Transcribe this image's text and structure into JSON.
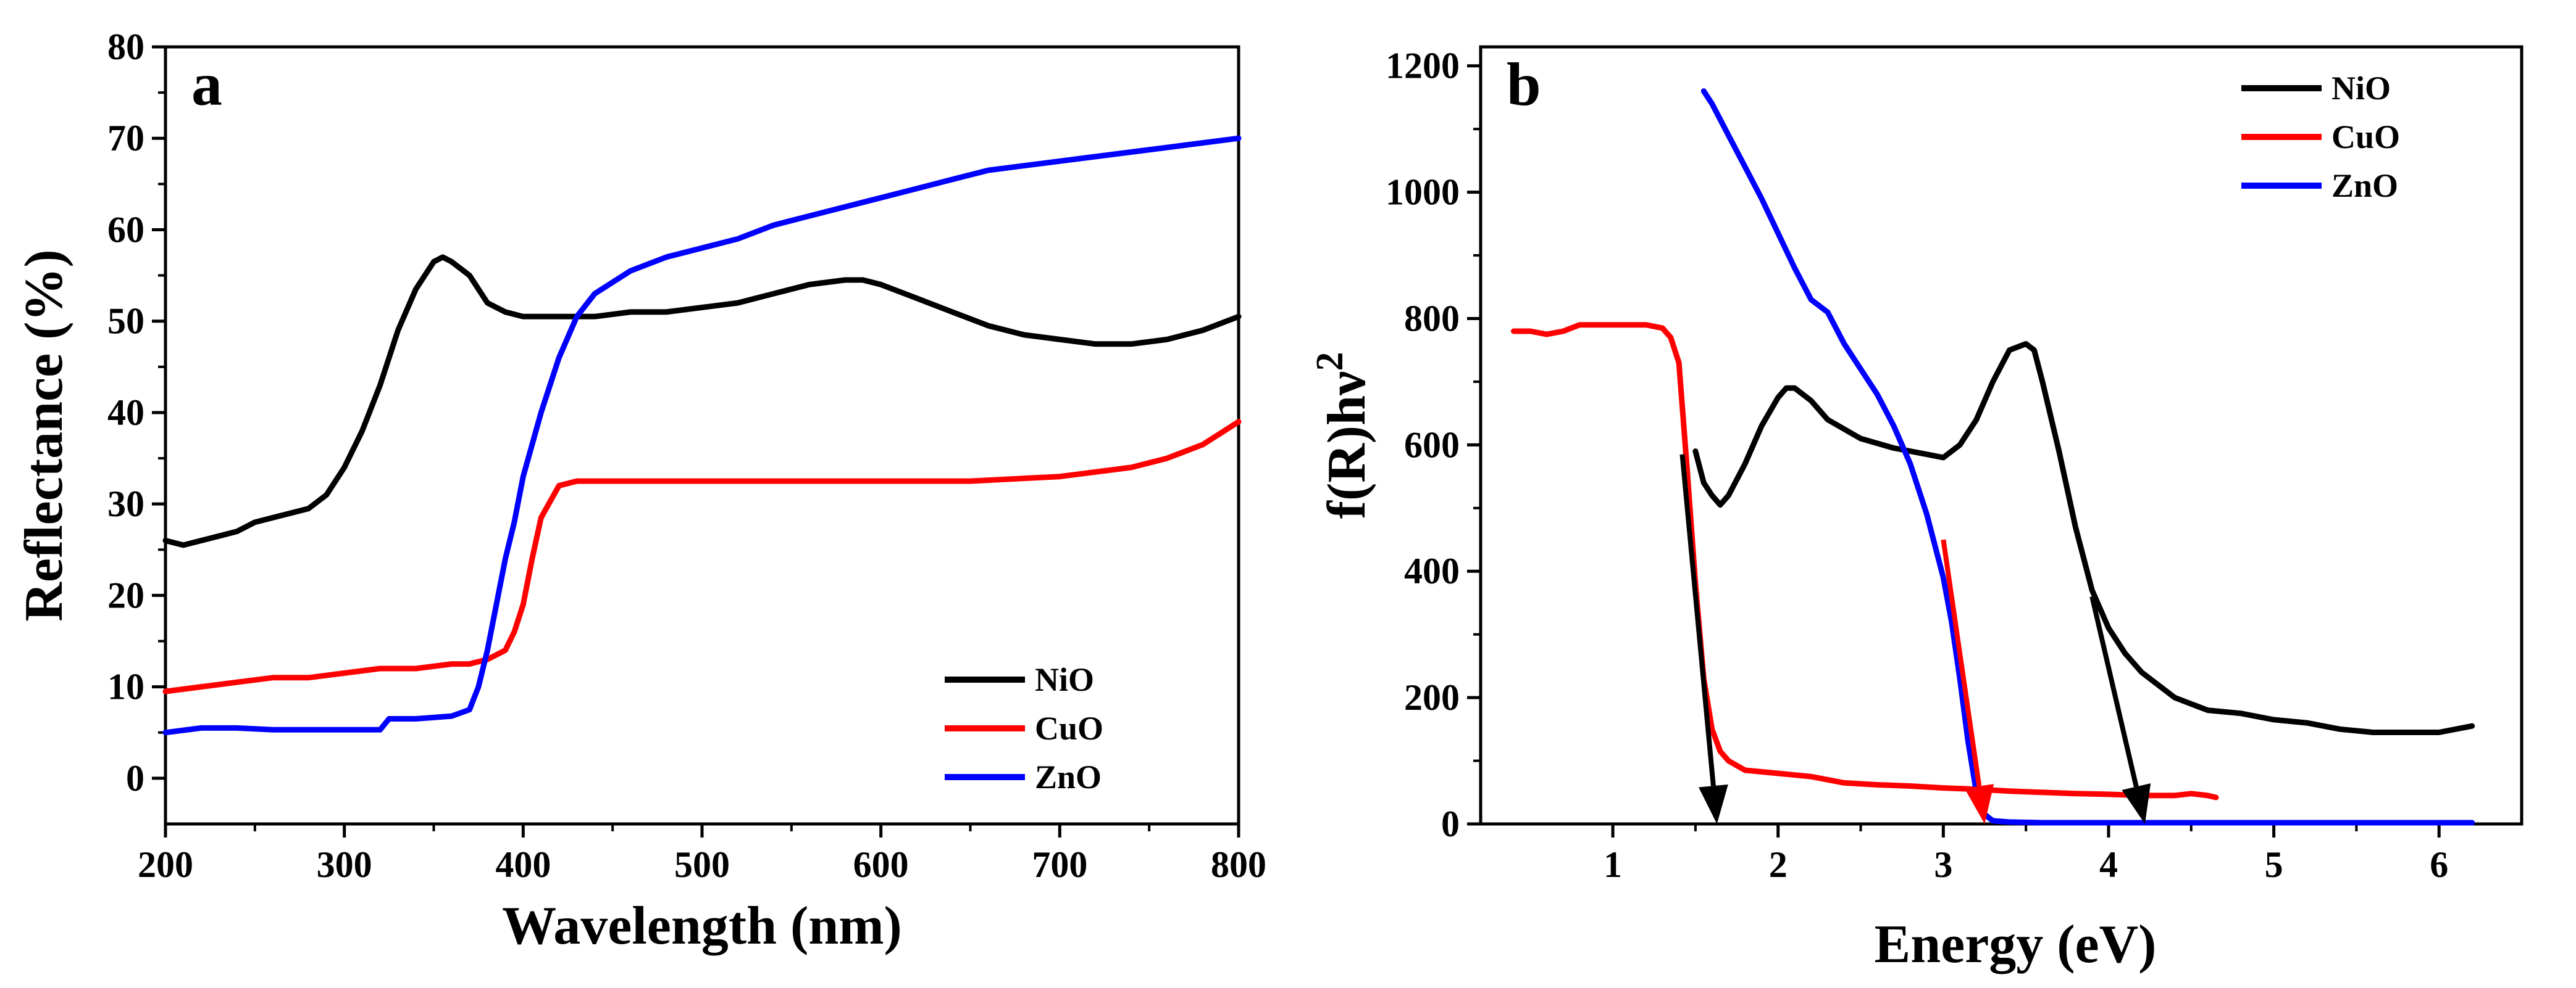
{
  "chart_data": [
    {
      "panel_label": "a",
      "type": "line",
      "title": "",
      "xlabel": "Wavelength (nm)",
      "ylabel": "Reflectance (%)",
      "xlim": [
        200,
        800
      ],
      "ylim": [
        -5,
        80
      ],
      "xticks": [
        200,
        300,
        400,
        500,
        600,
        700,
        800
      ],
      "yticks": [
        0,
        10,
        20,
        30,
        40,
        50,
        60,
        70,
        80
      ],
      "grid": false,
      "legend_position": "bottom-right",
      "series": [
        {
          "name": "NiO",
          "color": "#000000",
          "x": [
            200,
            210,
            220,
            230,
            240,
            250,
            260,
            270,
            280,
            290,
            300,
            310,
            320,
            330,
            340,
            350,
            355,
            360,
            370,
            380,
            390,
            400,
            420,
            440,
            460,
            480,
            500,
            520,
            540,
            560,
            580,
            590,
            600,
            620,
            640,
            660,
            680,
            700,
            720,
            740,
            760,
            780,
            800
          ],
          "y": [
            26,
            25.5,
            26,
            26.5,
            27,
            28,
            28.5,
            29,
            29.5,
            31,
            34,
            38,
            43,
            49,
            53.5,
            56.5,
            57,
            56.5,
            55,
            52,
            51,
            50.5,
            50.5,
            50.5,
            51,
            51,
            51.5,
            52,
            53,
            54,
            54.5,
            54.5,
            54,
            52.5,
            51,
            49.5,
            48.5,
            48,
            47.5,
            47.5,
            48,
            49,
            50.5
          ]
        },
        {
          "name": "CuO",
          "color": "#ff0000",
          "x": [
            200,
            220,
            240,
            260,
            280,
            300,
            320,
            340,
            360,
            370,
            380,
            390,
            395,
            400,
            405,
            410,
            420,
            430,
            440,
            460,
            500,
            550,
            600,
            650,
            700,
            740,
            760,
            780,
            800
          ],
          "y": [
            9.5,
            10,
            10.5,
            11,
            11,
            11.5,
            12,
            12,
            12.5,
            12.5,
            13,
            14,
            16,
            19,
            24,
            28.5,
            32,
            32.5,
            32.5,
            32.5,
            32.5,
            32.5,
            32.5,
            32.5,
            33,
            34,
            35,
            36.5,
            39
          ]
        },
        {
          "name": "ZnO",
          "color": "#0000ff",
          "x": [
            200,
            220,
            240,
            260,
            280,
            300,
            320,
            325,
            340,
            360,
            370,
            375,
            380,
            385,
            390,
            395,
            400,
            410,
            420,
            430,
            440,
            460,
            480,
            500,
            520,
            540,
            560,
            580,
            600,
            620,
            640,
            660,
            680,
            700,
            720,
            740,
            760,
            780,
            800
          ],
          "y": [
            5,
            5.5,
            5.5,
            5.3,
            5.3,
            5.3,
            5.3,
            6.5,
            6.5,
            6.8,
            7.5,
            10,
            14,
            19,
            24,
            28,
            33,
            40,
            46,
            50.5,
            53,
            55.5,
            57,
            58,
            59,
            60.5,
            61.5,
            62.5,
            63.5,
            64.5,
            65.5,
            66.5,
            67,
            67.5,
            68,
            68.5,
            69,
            69.5,
            70
          ]
        }
      ]
    },
    {
      "panel_label": "b",
      "type": "line",
      "title": "",
      "xlabel": "Energy (eV)",
      "ylabel_main": "f(R)hν",
      "ylabel_superscript": "2",
      "xlim": [
        0.2,
        6.5
      ],
      "ylim": [
        0,
        1230
      ],
      "xticks": [
        1,
        2,
        3,
        4,
        5,
        6
      ],
      "yticks": [
        0,
        200,
        400,
        600,
        800,
        1000,
        1200
      ],
      "grid": false,
      "legend_position": "top-right",
      "series": [
        {
          "name": "NiO",
          "color": "#000000",
          "x": [
            1.5,
            1.55,
            1.6,
            1.65,
            1.7,
            1.8,
            1.9,
            2.0,
            2.05,
            2.1,
            2.2,
            2.3,
            2.5,
            2.7,
            2.9,
            3.0,
            3.1,
            3.2,
            3.3,
            3.4,
            3.5,
            3.55,
            3.6,
            3.7,
            3.8,
            3.9,
            4.0,
            4.1,
            4.2,
            4.4,
            4.6,
            4.8,
            5.0,
            5.2,
            5.4,
            5.6,
            5.8,
            6.0,
            6.2
          ],
          "y": [
            590,
            540,
            520,
            505,
            520,
            570,
            630,
            675,
            690,
            690,
            670,
            640,
            610,
            595,
            585,
            580,
            600,
            640,
            700,
            750,
            760,
            750,
            700,
            590,
            470,
            370,
            310,
            270,
            240,
            200,
            180,
            175,
            165,
            160,
            150,
            145,
            145,
            145,
            155
          ]
        },
        {
          "name": "CuO",
          "color": "#ff0000",
          "x": [
            0.4,
            0.5,
            0.6,
            0.7,
            0.8,
            0.9,
            1.0,
            1.1,
            1.2,
            1.3,
            1.35,
            1.4,
            1.45,
            1.5,
            1.55,
            1.6,
            1.65,
            1.7,
            1.8,
            2.0,
            2.2,
            2.4,
            2.6,
            2.8,
            3.0,
            3.2,
            3.4,
            3.6,
            3.8,
            4.0,
            4.2,
            4.4,
            4.5,
            4.6,
            4.65
          ],
          "y": [
            780,
            780,
            775,
            780,
            790,
            790,
            790,
            790,
            790,
            785,
            770,
            730,
            560,
            380,
            230,
            150,
            115,
            100,
            85,
            80,
            75,
            65,
            62,
            60,
            57,
            55,
            52,
            50,
            48,
            47,
            45,
            45,
            48,
            45,
            42
          ]
        },
        {
          "name": "ZnO",
          "color": "#0000ff",
          "x": [
            1.55,
            1.6,
            1.7,
            1.8,
            1.9,
            2.0,
            2.1,
            2.2,
            2.3,
            2.4,
            2.5,
            2.6,
            2.7,
            2.8,
            2.9,
            3.0,
            3.05,
            3.1,
            3.15,
            3.2,
            3.25,
            3.3,
            3.4,
            3.6,
            4.0,
            5.0,
            6.0,
            6.2
          ],
          "y": [
            1160,
            1140,
            1090,
            1040,
            990,
            935,
            880,
            830,
            810,
            760,
            720,
            680,
            630,
            570,
            490,
            390,
            320,
            230,
            130,
            50,
            15,
            5,
            3,
            2,
            2,
            2,
            2,
            2
          ]
        }
      ],
      "annotations": [
        {
          "type": "arrow",
          "color": "#000000",
          "from": [
            1.42,
            585
          ],
          "to": [
            1.63,
            0
          ],
          "label": ""
        },
        {
          "type": "arrow",
          "color": "#ff0000",
          "from": [
            3.0,
            450
          ],
          "to": [
            3.25,
            0
          ],
          "label": ""
        },
        {
          "type": "arrow",
          "color": "#000000",
          "from": [
            3.9,
            360
          ],
          "to": [
            4.22,
            0
          ],
          "label": ""
        }
      ]
    }
  ]
}
